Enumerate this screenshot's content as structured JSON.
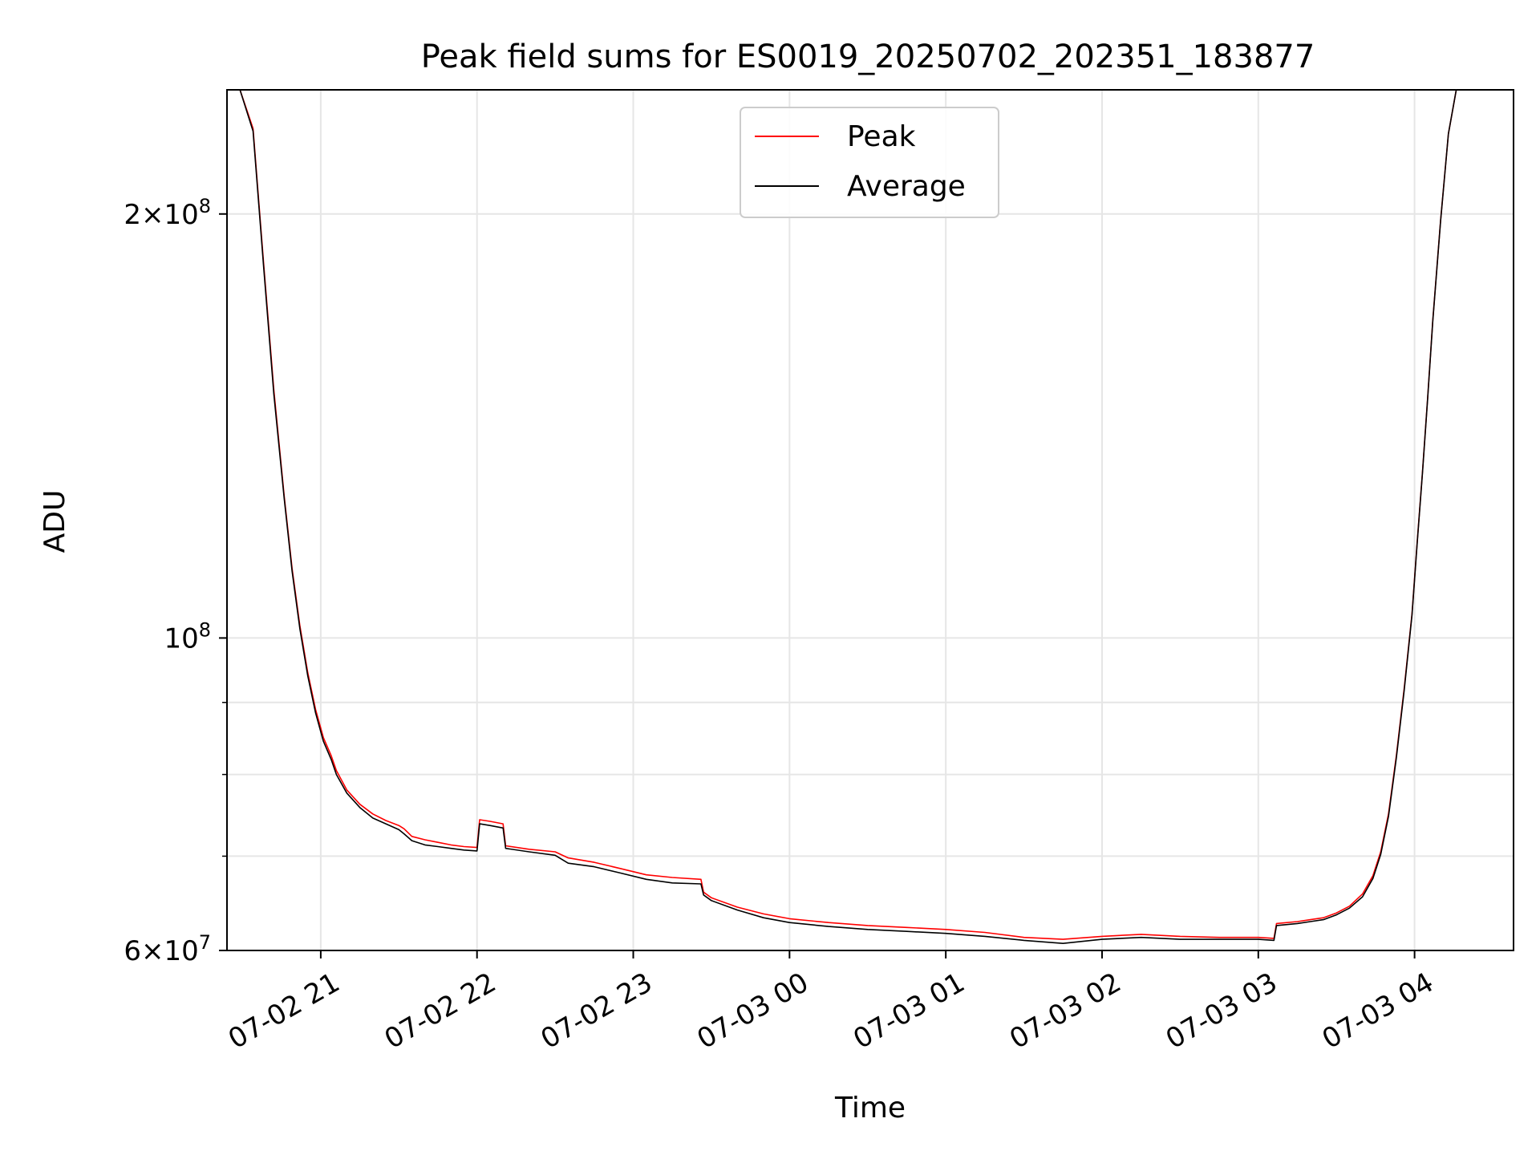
{
  "chart_data": {
    "type": "line",
    "title": "Peak field sums for ES0019_20250702_202351_183877",
    "xlabel": "Time",
    "ylabel": "ADU",
    "yscale": "log",
    "xlim": [
      "2025-07-02 20:24",
      "2025-07-03 04:38"
    ],
    "ylim": [
      60000000,
      245000000
    ],
    "grid": true,
    "legend_position": "top-center",
    "x_ticks": [
      {
        "x": "2025-07-02 21:00",
        "label": "07-02 21"
      },
      {
        "x": "2025-07-02 22:00",
        "label": "07-02 22"
      },
      {
        "x": "2025-07-02 23:00",
        "label": "07-02 23"
      },
      {
        "x": "2025-07-03 00:00",
        "label": "07-03 00"
      },
      {
        "x": "2025-07-03 01:00",
        "label": "07-03 01"
      },
      {
        "x": "2025-07-03 02:00",
        "label": "07-03 02"
      },
      {
        "x": "2025-07-03 03:00",
        "label": "07-03 03"
      },
      {
        "x": "2025-07-03 04:00",
        "label": "07-03 04"
      }
    ],
    "y_major_ticks": [
      {
        "value": 60000000,
        "mantissa": "6",
        "exponent": "7"
      },
      {
        "value": 100000000,
        "mantissa": "",
        "exponent": "8"
      },
      {
        "value": 200000000,
        "mantissa": "2",
        "exponent": "8"
      }
    ],
    "y_minor_ticks": [
      70000000,
      80000000,
      90000000
    ],
    "series": [
      {
        "name": "Peak",
        "color": "#ff0000",
        "x": [
          "2025-07-02 20:24",
          "2025-07-02 20:29",
          "2025-07-02 20:34",
          "2025-07-02 20:38",
          "2025-07-02 20:42",
          "2025-07-02 20:46",
          "2025-07-02 20:49",
          "2025-07-02 20:52",
          "2025-07-02 20:55",
          "2025-07-02 20:58",
          "2025-07-02 21:01",
          "2025-07-02 21:04",
          "2025-07-02 21:06",
          "2025-07-02 21:10",
          "2025-07-02 21:15",
          "2025-07-02 21:20",
          "2025-07-02 21:25",
          "2025-07-02 21:30",
          "2025-07-02 21:32",
          "2025-07-02 21:35",
          "2025-07-02 21:40",
          "2025-07-02 21:45",
          "2025-07-02 21:50",
          "2025-07-02 21:55",
          "2025-07-02 22:00",
          "2025-07-02 22:01",
          "2025-07-02 22:05",
          "2025-07-02 22:10",
          "2025-07-02 22:11",
          "2025-07-02 22:20",
          "2025-07-02 22:30",
          "2025-07-02 22:35",
          "2025-07-02 22:45",
          "2025-07-02 22:55",
          "2025-07-02 23:05",
          "2025-07-02 23:15",
          "2025-07-02 23:26",
          "2025-07-02 23:27",
          "2025-07-02 23:30",
          "2025-07-02 23:40",
          "2025-07-02 23:50",
          "2025-07-03 00:00",
          "2025-07-03 00:15",
          "2025-07-03 00:30",
          "2025-07-03 00:45",
          "2025-07-03 01:00",
          "2025-07-03 01:15",
          "2025-07-03 01:30",
          "2025-07-03 01:45",
          "2025-07-03 02:00",
          "2025-07-03 02:15",
          "2025-07-03 02:30",
          "2025-07-03 02:45",
          "2025-07-03 03:00",
          "2025-07-03 03:06",
          "2025-07-03 03:07",
          "2025-07-03 03:15",
          "2025-07-03 03:20",
          "2025-07-03 03:25",
          "2025-07-03 03:30",
          "2025-07-03 03:35",
          "2025-07-03 03:40",
          "2025-07-03 03:44",
          "2025-07-03 03:47",
          "2025-07-03 03:50",
          "2025-07-03 03:53",
          "2025-07-03 03:56",
          "2025-07-03 03:59",
          "2025-07-03 04:01",
          "2025-07-03 04:03",
          "2025-07-03 04:05",
          "2025-07-03 04:07",
          "2025-07-03 04:10",
          "2025-07-03 04:13",
          "2025-07-03 04:16",
          "2025-07-03 04:20"
        ],
        "y": [
          245000000,
          245000000,
          230000000,
          185000000,
          150000000,
          126000000,
          112000000,
          102000000,
          94500000,
          89000000,
          85000000,
          82500000,
          80500000,
          78000000,
          76200000,
          75000000,
          74200000,
          73600000,
          73200000,
          72300000,
          71900000,
          71600000,
          71300000,
          71100000,
          71000000,
          74300000,
          74100000,
          73800000,
          71200000,
          70800000,
          70500000,
          69800000,
          69300000,
          68600000,
          67900000,
          67600000,
          67400000,
          66000000,
          65400000,
          64400000,
          63700000,
          63200000,
          62800000,
          62500000,
          62300000,
          62100000,
          61800000,
          61300000,
          61100000,
          61400000,
          61600000,
          61400000,
          61300000,
          61300000,
          61200000,
          62700000,
          62900000,
          63100000,
          63300000,
          63800000,
          64500000,
          65800000,
          67800000,
          70500000,
          75000000,
          82500000,
          92000000,
          104000000,
          117000000,
          131000000,
          148000000,
          168000000,
          198000000,
          228000000,
          245000000,
          245000000
        ]
      },
      {
        "name": "Average",
        "color": "#000000",
        "x": [
          "2025-07-02 20:24",
          "2025-07-02 20:29",
          "2025-07-02 20:34",
          "2025-07-02 20:38",
          "2025-07-02 20:42",
          "2025-07-02 20:46",
          "2025-07-02 20:49",
          "2025-07-02 20:52",
          "2025-07-02 20:55",
          "2025-07-02 20:58",
          "2025-07-02 21:01",
          "2025-07-02 21:04",
          "2025-07-02 21:06",
          "2025-07-02 21:10",
          "2025-07-02 21:15",
          "2025-07-02 21:20",
          "2025-07-02 21:25",
          "2025-07-02 21:30",
          "2025-07-02 21:32",
          "2025-07-02 21:35",
          "2025-07-02 21:40",
          "2025-07-02 21:45",
          "2025-07-02 21:50",
          "2025-07-02 21:55",
          "2025-07-02 22:00",
          "2025-07-02 22:01",
          "2025-07-02 22:05",
          "2025-07-02 22:10",
          "2025-07-02 22:11",
          "2025-07-02 22:20",
          "2025-07-02 22:30",
          "2025-07-02 22:35",
          "2025-07-02 22:45",
          "2025-07-02 22:55",
          "2025-07-02 23:05",
          "2025-07-02 23:15",
          "2025-07-02 23:26",
          "2025-07-02 23:27",
          "2025-07-02 23:30",
          "2025-07-02 23:40",
          "2025-07-02 23:50",
          "2025-07-03 00:00",
          "2025-07-03 00:15",
          "2025-07-03 00:30",
          "2025-07-03 00:45",
          "2025-07-03 01:00",
          "2025-07-03 01:15",
          "2025-07-03 01:30",
          "2025-07-03 01:45",
          "2025-07-03 02:00",
          "2025-07-03 02:15",
          "2025-07-03 02:30",
          "2025-07-03 02:45",
          "2025-07-03 03:00",
          "2025-07-03 03:06",
          "2025-07-03 03:07",
          "2025-07-03 03:15",
          "2025-07-03 03:20",
          "2025-07-03 03:25",
          "2025-07-03 03:30",
          "2025-07-03 03:35",
          "2025-07-03 03:40",
          "2025-07-03 03:44",
          "2025-07-03 03:47",
          "2025-07-03 03:50",
          "2025-07-03 03:53",
          "2025-07-03 03:56",
          "2025-07-03 03:59",
          "2025-07-03 04:01",
          "2025-07-03 04:03",
          "2025-07-03 04:05",
          "2025-07-03 04:07",
          "2025-07-03 04:10",
          "2025-07-03 04:13",
          "2025-07-03 04:16",
          "2025-07-03 04:20"
        ],
        "y": [
          245000000,
          245000000,
          229000000,
          184000000,
          149000000,
          125500000,
          111500000,
          101500000,
          94000000,
          88500000,
          84500000,
          82000000,
          80000000,
          77600000,
          75800000,
          74500000,
          73800000,
          73100000,
          72600000,
          71800000,
          71300000,
          71100000,
          70900000,
          70700000,
          70600000,
          73800000,
          73600000,
          73300000,
          70900000,
          70500000,
          70100000,
          69200000,
          68800000,
          68100000,
          67400000,
          67000000,
          66900000,
          65700000,
          65100000,
          64100000,
          63300000,
          62800000,
          62400000,
          62100000,
          61900000,
          61700000,
          61400000,
          61000000,
          60700000,
          61100000,
          61300000,
          61100000,
          61100000,
          61100000,
          61000000,
          62500000,
          62700000,
          62900000,
          63100000,
          63600000,
          64300000,
          65500000,
          67500000,
          70200000,
          74700000,
          82200000,
          91700000,
          103800000,
          116800000,
          130800000,
          147800000,
          167800000,
          197800000,
          228000000,
          245000000,
          245000000
        ]
      }
    ]
  }
}
